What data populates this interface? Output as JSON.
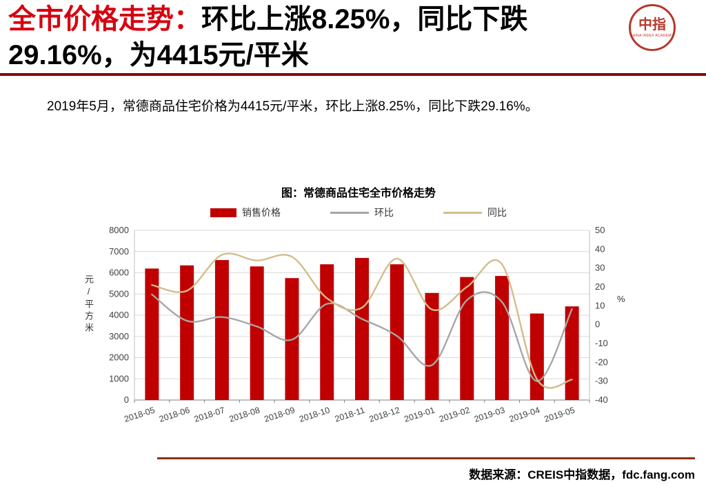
{
  "header": {
    "title_red": "全市价格走势：",
    "title_black": "环比上涨8.25%，同比下跌29.16%，为4415元/平米",
    "logo": {
      "text": "中指",
      "caption": "CHINA INDEX ACADEMY"
    }
  },
  "summary": "2019年5月，常德商品住宅价格为4415元/平米，环比上涨8.25%，同比下跌29.16%。",
  "footer": {
    "source": "数据来源：CREIS中指数据，fdc.fang.com"
  },
  "colors": {
    "title_red": "#d7000f",
    "top_divider": "#8b0000",
    "footer_line": "#8f2e12",
    "logo_red": "#b5382a",
    "bar_red": "#c00000",
    "mom_gray": "#a6a6a6",
    "yoy_tan": "#d2bd8a"
  },
  "chart_data": {
    "type": "bar",
    "title": "图：常德商品住宅全市价格走势",
    "categories": [
      "2018-05",
      "2018-06",
      "2018-07",
      "2018-08",
      "2018-09",
      "2018-10",
      "2018-11",
      "2018-12",
      "2019-01",
      "2019-02",
      "2019-03",
      "2019-04",
      "2019-05"
    ],
    "series": [
      {
        "name": "销售价格",
        "type": "bar",
        "axis": "left",
        "color": "#c00000",
        "values": [
          6200,
          6350,
          6600,
          6300,
          5750,
          6400,
          6700,
          6400,
          5050,
          5800,
          5850,
          4080,
          4415
        ]
      },
      {
        "name": "环比",
        "type": "line",
        "axis": "right",
        "color": "#a6a6a6",
        "values": [
          16,
          2,
          4,
          -1,
          -8,
          11,
          3,
          -6,
          -21.5,
          13,
          12,
          -30,
          8.25
        ]
      },
      {
        "name": "同比",
        "type": "line",
        "axis": "right",
        "color": "#d2bd8a",
        "values": [
          21,
          18,
          37,
          34,
          36,
          14,
          9,
          35,
          8,
          20,
          32,
          -29,
          -29.16
        ]
      }
    ],
    "left_axis": {
      "title": "元/平方米",
      "min": 0,
      "max": 8000,
      "step": 1000
    },
    "right_axis": {
      "title": "%",
      "min": -40,
      "max": 50,
      "step": 10
    },
    "legend_position": "top",
    "grid": true
  }
}
